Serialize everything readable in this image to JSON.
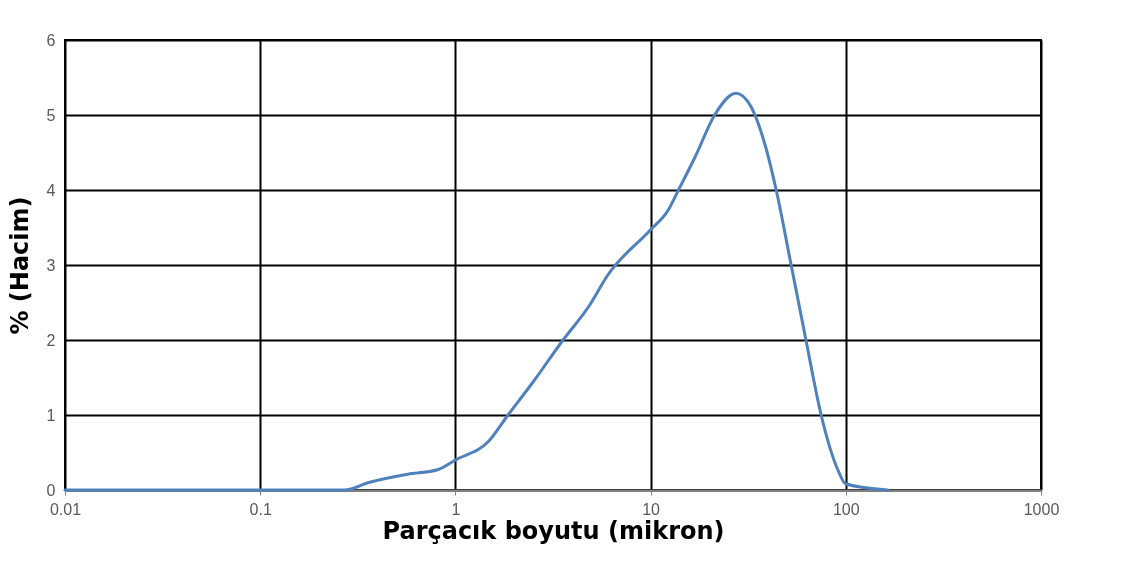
{
  "chart_data": {
    "type": "line",
    "xlabel": "Parçacık boyutu (mikron)",
    "ylabel": "% (Hacim)",
    "log": "x",
    "grid": true,
    "marker": "none",
    "line_style": "solid",
    "xlim": [
      0.01,
      1000
    ],
    "xticks": [
      0.01,
      0.1,
      1,
      10,
      100,
      1000
    ],
    "ylim": [
      0,
      6
    ],
    "yticks": [
      0,
      1,
      2,
      3,
      4,
      5,
      6
    ],
    "x": [
      0.01,
      0.1,
      0.27,
      0.36,
      0.57,
      0.81,
      1,
      1.48,
      1.86,
      2.5,
      3.56,
      4.8,
      6.05,
      10,
      12.3,
      13.9,
      16.9,
      21.4,
      27.4,
      32.7,
      38.5,
      44,
      52.4,
      62.5,
      74.6,
      91,
      100,
      164
    ],
    "series": [
      {
        "color": "#4f81bd",
        "values": [
          0,
          0,
          0,
          0.1,
          0.21,
          0.27,
          0.4,
          0.65,
          1.0,
          1.44,
          2.0,
          2.44,
          2.87,
          3.47,
          3.73,
          4.0,
          4.44,
          5.01,
          5.29,
          5.11,
          4.61,
          4.0,
          3.01,
          2.0,
          1.01,
          0.27,
          0.08,
          0
        ]
      }
    ]
  }
}
